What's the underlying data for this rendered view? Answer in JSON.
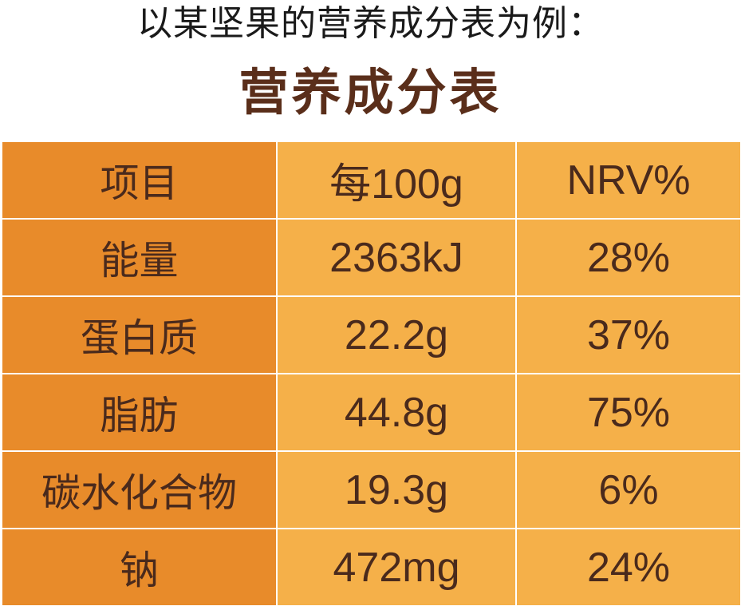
{
  "intro": "以某坚果的营养成分表为例：",
  "title": "营养成分表",
  "colors": {
    "name_column": "#e88b2a",
    "value_columns": "#f5b049",
    "title_text": "#5a2e1a",
    "cell_text": "#4a2a1c"
  },
  "table": {
    "header": [
      "项目",
      "每100g",
      "NRV%"
    ],
    "rows": [
      [
        "能量",
        "2363kJ",
        "28%"
      ],
      [
        "蛋白质",
        "22.2g",
        "37%"
      ],
      [
        "脂肪",
        "44.8g",
        "75%"
      ],
      [
        "碳水化合物",
        "19.3g",
        "6%"
      ],
      [
        "钠",
        "472mg",
        "24%"
      ]
    ]
  }
}
